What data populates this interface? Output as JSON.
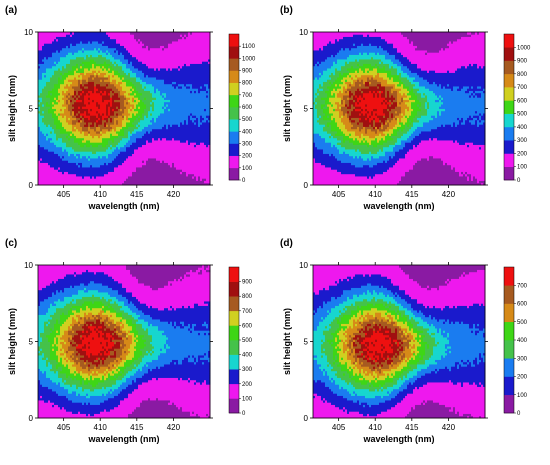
{
  "chart_data": [
    {
      "type": "heatmap",
      "panel_label": "(a)",
      "xlabel": "wavelength (nm)",
      "ylabel": "slit height (mm)",
      "xlim": [
        401.5,
        425
      ],
      "ylim": [
        0,
        10
      ],
      "x_ticks": [
        "405",
        "410",
        "415",
        "420"
      ],
      "y_ticks": [
        "0",
        "5",
        "10"
      ],
      "colorbar_ticks": [
        "0",
        "100",
        "200",
        "300",
        "400",
        "500",
        "600",
        "700",
        "800",
        "900",
        "1000",
        "1100"
      ],
      "colorbar_range": [
        0,
        1100
      ],
      "peak": {
        "x": 409.5,
        "y": 5.3,
        "value": 1050
      },
      "beam_waist_at_x": 417,
      "beam_half_width_max_mm": 3.8,
      "beam_half_width_min_mm": 2.4
    },
    {
      "type": "heatmap",
      "panel_label": "(b)",
      "xlabel": "wavelength (nm)",
      "ylabel": "slit height (mm)",
      "xlim": [
        401.5,
        425
      ],
      "ylim": [
        0,
        10
      ],
      "x_ticks": [
        "405",
        "410",
        "415",
        "420"
      ],
      "y_ticks": [
        "0",
        "5",
        "10"
      ],
      "colorbar_ticks": [
        "0",
        "100",
        "200",
        "300",
        "400",
        "500",
        "600",
        "700",
        "800",
        "900",
        "1000"
      ],
      "colorbar_range": [
        0,
        1000
      ],
      "peak": {
        "x": 409.5,
        "y": 5.2,
        "value": 950
      },
      "beam_waist_at_x": 417,
      "beam_half_width_max_mm": 3.7,
      "beam_half_width_min_mm": 2.3
    },
    {
      "type": "heatmap",
      "panel_label": "(c)",
      "xlabel": "wavelength (nm)",
      "ylabel": "slit height (mm)",
      "xlim": [
        401.5,
        425
      ],
      "ylim": [
        0,
        10
      ],
      "x_ticks": [
        "405",
        "410",
        "415",
        "420"
      ],
      "y_ticks": [
        "0",
        "5",
        "10"
      ],
      "colorbar_ticks": [
        "0",
        "100",
        "200",
        "300",
        "400",
        "500",
        "600",
        "700",
        "800",
        "900"
      ],
      "colorbar_range": [
        0,
        900
      ],
      "peak": {
        "x": 409.5,
        "y": 4.9,
        "value": 860
      },
      "beam_waist_at_x": 417,
      "beam_half_width_max_mm": 3.7,
      "beam_half_width_min_mm": 2.4
    },
    {
      "type": "heatmap",
      "panel_label": "(d)",
      "xlabel": "wavelength (nm)",
      "ylabel": "slit height (mm)",
      "xlim": [
        401.5,
        425
      ],
      "ylim": [
        0,
        10
      ],
      "x_ticks": [
        "405",
        "410",
        "415",
        "420"
      ],
      "y_ticks": [
        "0",
        "5",
        "10"
      ],
      "colorbar_ticks": [
        "0",
        "100",
        "200",
        "300",
        "400",
        "500",
        "600",
        "700"
      ],
      "colorbar_range": [
        0,
        700
      ],
      "peak": {
        "x": 410.5,
        "y": 4.8,
        "value": 660
      },
      "beam_waist_at_x": 417,
      "beam_half_width_max_mm": 3.7,
      "beam_half_width_min_mm": 2.4
    }
  ],
  "colorscale": [
    "#8a1aa3",
    "#ee18ee",
    "#1a1acc",
    "#1a7cf0",
    "#17d6cf",
    "#45c24a",
    "#3ed616",
    "#d0d020",
    "#d68a18",
    "#a65a20",
    "#a01010",
    "#ee1010"
  ]
}
